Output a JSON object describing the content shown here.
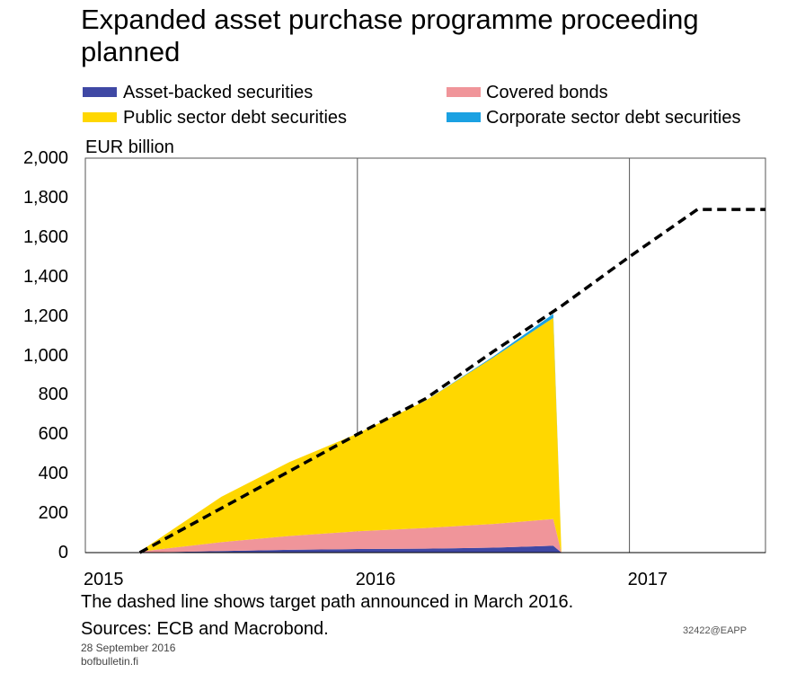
{
  "title_line1": "Expanded asset purchase programme proceeding",
  "title_line2": "planned",
  "note": "The dashed line shows target path announced in March 2016.",
  "sources": "Sources: ECB and Macrobond.",
  "code": "32422@EAPP",
  "date": "28 September 2016",
  "site": "bofbulletin.fi",
  "colors": {
    "abs": "#3f48a4",
    "covered": "#f0959a",
    "public": "#ffd700",
    "corporate": "#1ba1e2",
    "target": "#000000",
    "grid": "#555555"
  },
  "chart_data": {
    "type": "area",
    "ylabel": "EUR billion",
    "ylim": [
      0,
      2000
    ],
    "yticks": [
      "0",
      "200",
      "400",
      "600",
      "800",
      "1,000",
      "1,200",
      "1,400",
      "1,600",
      "1,800",
      "2,000"
    ],
    "xticks": [
      "2015",
      "2016",
      "2017"
    ],
    "xlim": [
      2015.0,
      2017.5
    ],
    "stacked": true,
    "x": [
      2015.2,
      2015.5,
      2015.75,
      2016.0,
      2016.25,
      2016.5,
      2016.72
    ],
    "series": [
      {
        "name": "Asset-backed securities",
        "values": [
          0,
          8,
          14,
          18,
          20,
          25,
          35
        ]
      },
      {
        "name": "Covered bonds",
        "values": [
          5,
          45,
          70,
          90,
          105,
          120,
          135
        ]
      },
      {
        "name": "Public sector debt securities",
        "values": [
          0,
          230,
          375,
          495,
          645,
          845,
          1020
        ]
      },
      {
        "name": "Corporate sector debt securities",
        "values": [
          0,
          0,
          0,
          0,
          0,
          5,
          20
        ]
      }
    ],
    "target_path": {
      "x": [
        2015.2,
        2016.0,
        2016.25,
        2016.5,
        2016.75,
        2017.0,
        2017.25,
        2017.5
      ],
      "values": [
        0,
        600,
        780,
        1020,
        1250,
        1500,
        1740,
        1740
      ]
    },
    "legend": "top",
    "grid": true
  }
}
